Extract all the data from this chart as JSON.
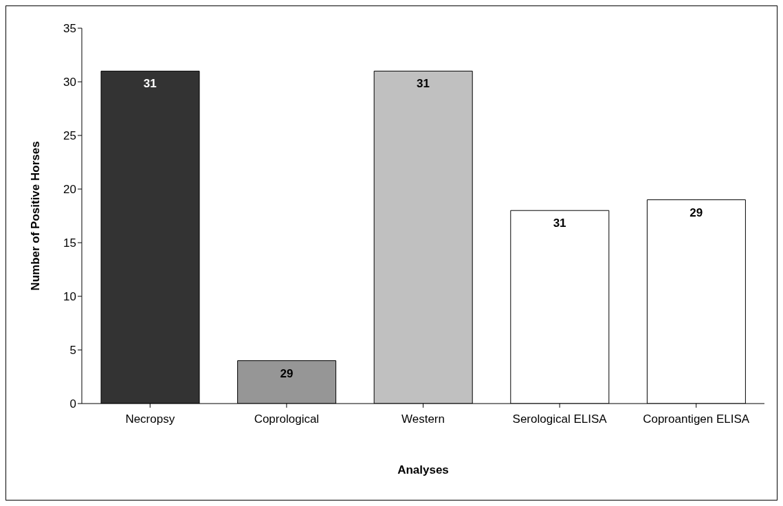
{
  "chart_data": {
    "type": "bar",
    "xlabel": "Analyses",
    "ylabel": "Number of Positive Horses",
    "categories": [
      "Necropsy",
      "Coprological",
      "Western",
      "Serological ELISA",
      "Coproantigen ELISA"
    ],
    "values": [
      31,
      4,
      31,
      18,
      19
    ],
    "colors": [
      "#333333",
      "#969696",
      "#c0c0c0",
      "#ffffff",
      "#ffffff"
    ],
    "annotations": [
      {
        "text": "31",
        "x": "Necropsy",
        "y": 31
      },
      {
        "text": "29",
        "x": "Coprological",
        "y": 4
      },
      {
        "text": "31",
        "x": "Western",
        "y": 31
      },
      {
        "text": "31",
        "x": "Serological ELISA",
        "y": 18
      },
      {
        "text": "29",
        "x": "Coproantigen ELISA",
        "y": 19
      }
    ],
    "ylim": [
      0,
      35
    ],
    "yticks": [
      0,
      5,
      10,
      15,
      20,
      25,
      30,
      35
    ],
    "grid": false,
    "legend": false
  }
}
